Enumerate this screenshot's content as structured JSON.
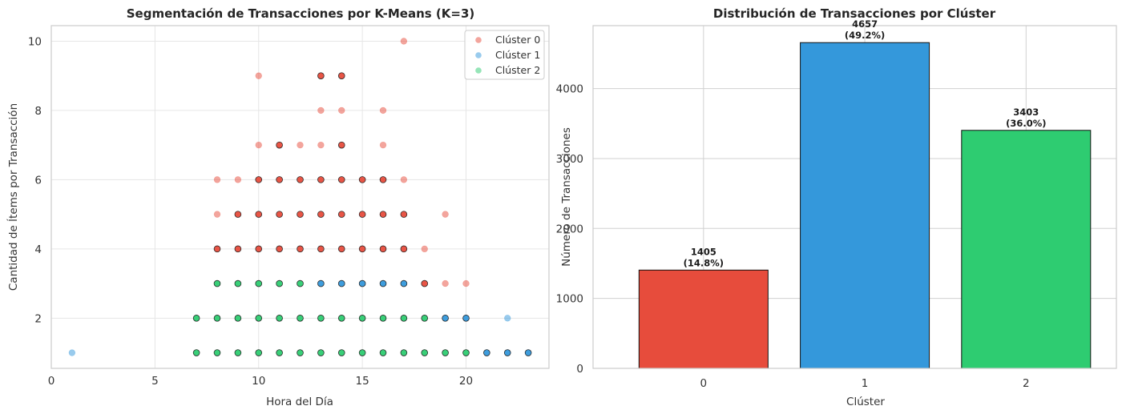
{
  "chart_data": [
    {
      "type": "scatter",
      "title": "Segmentación de Transacciones por K-Means (K=3)",
      "xlabel": "Hora del Día",
      "ylabel": "Cantidad de Ítems por Transacción",
      "xlim": [
        0,
        24
      ],
      "ylim": [
        0.55,
        10.45
      ],
      "xticks": [
        "0",
        "5",
        "10",
        "15",
        "20"
      ],
      "yticks": [
        "2",
        "4",
        "6",
        "8",
        "10"
      ],
      "grid": true,
      "legend_position": "top-right",
      "series": [
        {
          "name": "Clúster 0",
          "color": "#e74c3c",
          "points": [
            [
              8,
              6
            ],
            [
              9,
              6
            ],
            [
              10,
              6
            ],
            [
              11,
              6
            ],
            [
              12,
              6
            ],
            [
              13,
              6
            ],
            [
              14,
              6
            ],
            [
              15,
              6
            ],
            [
              16,
              6
            ],
            [
              17,
              6
            ],
            [
              8,
              5
            ],
            [
              9,
              5
            ],
            [
              10,
              5
            ],
            [
              11,
              5
            ],
            [
              12,
              5
            ],
            [
              13,
              5
            ],
            [
              14,
              5
            ],
            [
              15,
              5
            ],
            [
              16,
              5
            ],
            [
              17,
              5
            ],
            [
              19,
              5
            ],
            [
              8,
              4
            ],
            [
              9,
              4
            ],
            [
              10,
              4
            ],
            [
              11,
              4
            ],
            [
              12,
              4
            ],
            [
              13,
              4
            ],
            [
              14,
              4
            ],
            [
              15,
              4
            ],
            [
              16,
              4
            ],
            [
              17,
              4
            ],
            [
              18,
              4
            ],
            [
              18,
              3
            ],
            [
              19,
              3
            ],
            [
              20,
              3
            ],
            [
              10,
              7
            ],
            [
              11,
              7
            ],
            [
              12,
              7
            ],
            [
              13,
              7
            ],
            [
              14,
              7
            ],
            [
              16,
              7
            ],
            [
              13,
              8
            ],
            [
              14,
              8
            ],
            [
              16,
              8
            ],
            [
              10,
              9
            ],
            [
              13,
              9
            ],
            [
              14,
              9
            ],
            [
              17,
              10
            ]
          ]
        },
        {
          "name": "Clúster 1",
          "color": "#3498db",
          "points": [
            [
              1,
              1
            ],
            [
              21,
              1
            ],
            [
              22,
              1
            ],
            [
              23,
              1
            ],
            [
              19,
              2
            ],
            [
              20,
              2
            ],
            [
              22,
              2
            ],
            [
              13,
              3
            ],
            [
              14,
              3
            ],
            [
              15,
              3
            ],
            [
              16,
              3
            ],
            [
              17,
              3
            ]
          ]
        },
        {
          "name": "Clúster 2",
          "color": "#2ecc71",
          "points": [
            [
              7,
              1
            ],
            [
              8,
              1
            ],
            [
              9,
              1
            ],
            [
              10,
              1
            ],
            [
              11,
              1
            ],
            [
              12,
              1
            ],
            [
              13,
              1
            ],
            [
              14,
              1
            ],
            [
              15,
              1
            ],
            [
              16,
              1
            ],
            [
              17,
              1
            ],
            [
              18,
              1
            ],
            [
              19,
              1
            ],
            [
              20,
              1
            ],
            [
              7,
              2
            ],
            [
              8,
              2
            ],
            [
              9,
              2
            ],
            [
              10,
              2
            ],
            [
              11,
              2
            ],
            [
              12,
              2
            ],
            [
              13,
              2
            ],
            [
              14,
              2
            ],
            [
              15,
              2
            ],
            [
              16,
              2
            ],
            [
              17,
              2
            ],
            [
              18,
              2
            ],
            [
              8,
              3
            ],
            [
              9,
              3
            ],
            [
              10,
              3
            ],
            [
              11,
              3
            ],
            [
              12,
              3
            ]
          ]
        }
      ]
    },
    {
      "type": "bar",
      "title": "Distribución de Transacciones por Clúster",
      "xlabel": "Clúster",
      "ylabel": "Número de Transacciones",
      "categories": [
        "0",
        "1",
        "2"
      ],
      "values": [
        1405,
        4657,
        3403
      ],
      "value_labels": [
        "1405",
        "4657",
        "3403"
      ],
      "percent_labels": [
        "(14.8%)",
        "(49.2%)",
        "(36.0%)"
      ],
      "colors": [
        "#e74c3c",
        "#3498db",
        "#2ecc71"
      ],
      "ylim": [
        0,
        4900
      ],
      "yticks": [
        "0",
        "1000",
        "2000",
        "3000",
        "4000"
      ],
      "grid": true
    }
  ]
}
